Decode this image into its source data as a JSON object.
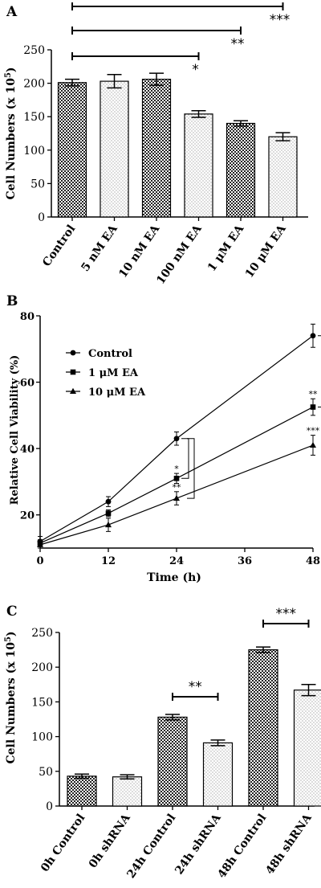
{
  "chart_data": [
    {
      "panel_label": "A",
      "type": "bar",
      "categories": [
        "Control",
        "5 nM EA",
        "10 nM EA",
        "100 nM EA",
        "1 μM EA",
        "10 μM EA"
      ],
      "values": [
        201,
        203,
        206,
        154,
        140,
        120
      ],
      "errors": [
        5,
        10,
        9,
        5,
        4,
        6
      ],
      "fills": [
        "checker",
        "dots",
        "checker",
        "dots",
        "checker",
        "dots"
      ],
      "ylabel": "Cell Numbers (x 10",
      "ylabel_exp": "5",
      "ylabel_close": ")",
      "ylim": [
        0,
        250
      ],
      "yticks": [
        0,
        50,
        100,
        150,
        200,
        250
      ],
      "significance": [
        {
          "from": 0,
          "to": 3,
          "label": "*"
        },
        {
          "from": 0,
          "to": 4,
          "label": "**"
        },
        {
          "from": 0,
          "to": 5,
          "label": "***"
        }
      ]
    },
    {
      "panel_label": "B",
      "type": "line",
      "x": [
        0,
        12,
        24,
        48
      ],
      "xlim": [
        0,
        48
      ],
      "xticks": [
        0,
        12,
        24,
        36,
        48
      ],
      "ylim": [
        10,
        80
      ],
      "yticks": [
        20,
        40,
        60,
        80
      ],
      "xlabel": "Time (h)",
      "ylabel": "Relative Cell Viability (%)",
      "legend_position": "top-left",
      "series": [
        {
          "name": "Control",
          "marker": "circle",
          "values": [
            12,
            24,
            43,
            74
          ],
          "errors": [
            1.5,
            1.5,
            2,
            3.5
          ]
        },
        {
          "name": "1 μM EA",
          "marker": "square",
          "values": [
            11.5,
            20.5,
            31,
            52.5
          ],
          "errors": [
            1,
            1,
            1.5,
            2.5
          ]
        },
        {
          "name": "10 μM EA",
          "marker": "triangle",
          "values": [
            11,
            17,
            25,
            41
          ],
          "errors": [
            1,
            2,
            2,
            3
          ]
        }
      ],
      "point_annotations": [
        {
          "series": 1,
          "index": 2,
          "label": "*"
        },
        {
          "series": 2,
          "index": 2,
          "label": "**"
        },
        {
          "series": 1,
          "index": 3,
          "label": "**"
        },
        {
          "series": 2,
          "index": 3,
          "label": "***"
        }
      ]
    },
    {
      "panel_label": "C",
      "type": "bar",
      "categories": [
        "0h Control",
        "0h shRNA",
        "24h Control",
        "24h shRNA",
        "48h Control",
        "48h shRNA"
      ],
      "values": [
        43,
        42,
        128,
        91,
        225,
        167
      ],
      "errors": [
        3,
        3,
        4,
        4,
        4,
        8
      ],
      "fills": [
        "checker",
        "dots",
        "checker",
        "dots",
        "checker",
        "dots"
      ],
      "ylabel": "Cell Numbers (x 10",
      "ylabel_exp": "5",
      "ylabel_close": ")",
      "ylim": [
        0,
        250
      ],
      "yticks": [
        0,
        50,
        100,
        150,
        200,
        250
      ],
      "significance": [
        {
          "from": 2,
          "to": 3,
          "label": "**"
        },
        {
          "from": 4,
          "to": 5,
          "label": "***"
        }
      ]
    }
  ]
}
